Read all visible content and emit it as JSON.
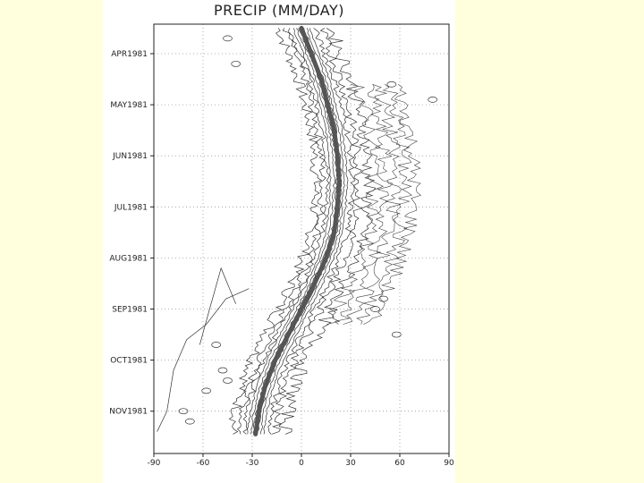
{
  "chart_data": {
    "type": "line",
    "title": "PRECIP (MM/DAY)",
    "xlabel": "",
    "ylabel": "",
    "xlim": [
      -90,
      90
    ],
    "x_ticks": [
      -90,
      -60,
      -30,
      0,
      30,
      60,
      90
    ],
    "x_tick_labels": [
      "-90",
      "-60",
      "-30",
      "0",
      "30",
      "60",
      "90"
    ],
    "y_tick_labels": [
      "APR1981",
      "MAY1981",
      "JUN1981",
      "JUL1981",
      "AUG1981",
      "SEP1981",
      "OCT1981",
      "NOV1981"
    ],
    "ylim_months": [
      0.5,
      8.45
    ],
    "grid": true,
    "series": [
      {
        "role": "rain-band-axis",
        "x": [
          0,
          6,
          12,
          16,
          20,
          22,
          23,
          22,
          20,
          15,
          8,
          0,
          -8,
          -16,
          -22,
          -26,
          -28
        ],
        "y_months": [
          0.5,
          1.0,
          1.5,
          2.0,
          2.5,
          3.0,
          3.5,
          4.0,
          4.5,
          5.0,
          5.5,
          6.0,
          6.5,
          7.0,
          7.5,
          8.0,
          8.45
        ]
      }
    ]
  }
}
